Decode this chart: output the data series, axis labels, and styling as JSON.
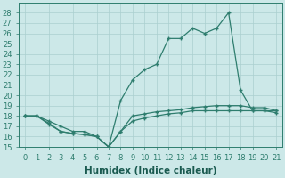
{
  "xlabel": "Humidex (Indice chaleur)",
  "bg_color": "#cce8e8",
  "line_color": "#2e7d6e",
  "grid_color": "#aacfcf",
  "xlim": [
    -0.5,
    21.5
  ],
  "ylim": [
    15,
    29
  ],
  "yticks": [
    15,
    16,
    17,
    18,
    19,
    20,
    21,
    22,
    23,
    24,
    25,
    26,
    27,
    28
  ],
  "xticks": [
    0,
    1,
    2,
    3,
    4,
    5,
    6,
    7,
    8,
    9,
    10,
    11,
    12,
    13,
    14,
    15,
    16,
    17,
    18,
    19,
    20,
    21
  ],
  "line1_x": [
    0,
    1,
    2,
    3,
    4,
    5,
    6,
    7,
    8,
    9,
    10,
    11,
    12,
    13,
    14,
    15,
    16,
    17,
    18,
    19,
    20,
    21
  ],
  "line1_y": [
    18.0,
    18.0,
    17.5,
    17.0,
    16.5,
    16.5,
    16.0,
    15.0,
    19.5,
    21.5,
    22.5,
    23.0,
    25.5,
    25.5,
    26.5,
    26.0,
    26.5,
    28.0,
    20.5,
    18.5,
    18.5,
    18.5
  ],
  "line2_x": [
    0,
    1,
    2,
    3,
    4,
    5,
    6,
    7,
    8,
    9,
    10,
    11,
    12,
    13,
    14,
    15,
    16,
    17,
    18,
    19,
    20,
    21
  ],
  "line2_y": [
    18.0,
    18.0,
    17.3,
    16.5,
    16.3,
    16.2,
    16.0,
    15.0,
    16.5,
    18.0,
    18.2,
    18.4,
    18.5,
    18.6,
    18.8,
    18.9,
    19.0,
    19.0,
    19.0,
    18.8,
    18.8,
    18.5
  ],
  "line3_x": [
    0,
    1,
    2,
    3,
    4,
    5,
    6,
    7,
    8,
    9,
    10,
    11,
    12,
    13,
    14,
    15,
    16,
    17,
    18,
    19,
    20,
    21
  ],
  "line3_y": [
    18.0,
    18.0,
    17.2,
    16.5,
    16.3,
    16.2,
    16.0,
    15.0,
    16.5,
    17.5,
    17.8,
    18.0,
    18.2,
    18.3,
    18.5,
    18.5,
    18.5,
    18.5,
    18.5,
    18.5,
    18.5,
    18.3
  ],
  "tick_fontsize": 6,
  "label_fontsize": 7.5
}
